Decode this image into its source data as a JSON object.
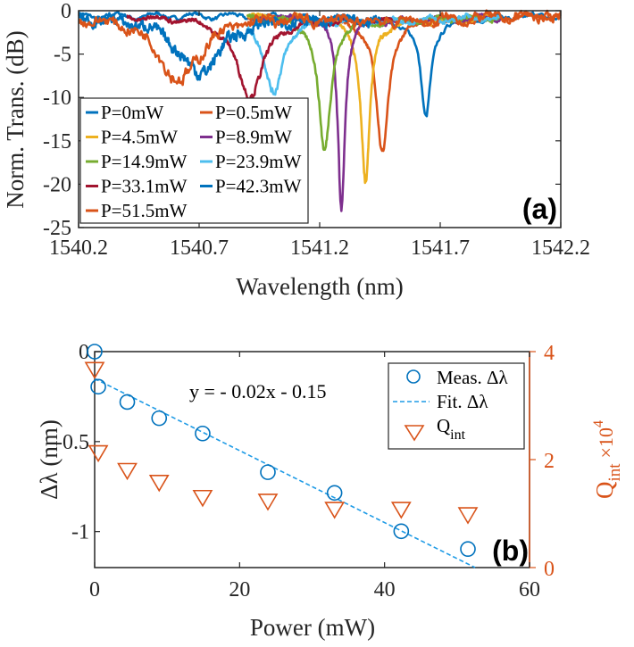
{
  "chart_data": [
    {
      "panel_label": "(a)",
      "type": "line",
      "xlabel": "Wavelength (nm)",
      "ylabel": "Norm. Trans. (dB)",
      "xlim": [
        1540.2,
        1542.2
      ],
      "ylim": [
        -25,
        0
      ],
      "xticks": [
        "1540.2",
        "1540.7",
        "1541.2",
        "1541.7",
        "1542.2"
      ],
      "yticks": [
        "0",
        "-5",
        "-10",
        "-15",
        "-20",
        "-25"
      ],
      "legend_position": "bottom-left",
      "grid": false,
      "series": [
        {
          "name": "P=0mW",
          "color": "#0072BD",
          "dip_center_nm": 1541.64,
          "dip_depth_db": -11.5,
          "fwhm_nm": 0.05,
          "range": [
            1540.2,
            1542.2
          ]
        },
        {
          "name": "P=0.5mW",
          "color": "#D95319",
          "dip_center_nm": 1541.46,
          "dip_depth_db": -15.5,
          "fwhm_nm": 0.06,
          "range": [
            1540.9,
            1542.2
          ]
        },
        {
          "name": "P=4.5mW",
          "color": "#EDB120",
          "dip_center_nm": 1541.39,
          "dip_depth_db": -19.0,
          "fwhm_nm": 0.045,
          "range": [
            1540.9,
            1541.9
          ]
        },
        {
          "name": "P=8.9mW",
          "color": "#7E2F8E",
          "dip_center_nm": 1541.29,
          "dip_depth_db": -22.0,
          "fwhm_nm": 0.035,
          "range": [
            1540.95,
            1541.95
          ]
        },
        {
          "name": "P=14.9mW",
          "color": "#77AC30",
          "dip_center_nm": 1541.22,
          "dip_depth_db": -15.5,
          "fwhm_nm": 0.06,
          "range": [
            1540.9,
            1541.95
          ]
        },
        {
          "name": "P=23.9mW",
          "color": "#4DBEEE",
          "dip_center_nm": 1541.01,
          "dip_depth_db": -9.0,
          "fwhm_nm": 0.09,
          "range": [
            1540.9,
            1541.95
          ]
        },
        {
          "name": "P=33.1mW",
          "color": "#A2142F",
          "dip_center_nm": 1540.91,
          "dip_depth_db": -9.0,
          "fwhm_nm": 0.14,
          "range": [
            1540.4,
            1541.5
          ]
        },
        {
          "name": "P=42.3mW",
          "color": "#0072BD",
          "dip_center_nm": 1540.7,
          "dip_depth_db": -6.5,
          "fwhm_nm": 0.22,
          "range": [
            1540.2,
            1541.45
          ]
        },
        {
          "name": "P=51.5mW",
          "color": "#D95319",
          "dip_center_nm": 1540.62,
          "dip_depth_db": -7.5,
          "fwhm_nm": 0.2,
          "range": [
            1540.2,
            1542.2
          ]
        }
      ]
    },
    {
      "panel_label": "(b)",
      "type": "scatter",
      "xlabel": "Power (mW)",
      "ylabel": "Δλ (nm)",
      "ylabel_right": {
        "base": "Q",
        "sub": "int",
        "mult": "×10",
        "sup": "4"
      },
      "xlim": [
        0,
        60
      ],
      "ylim": [
        -1.2,
        0
      ],
      "ylim_right": [
        0,
        4
      ],
      "xticks": [
        "0",
        "20",
        "40",
        "60"
      ],
      "yticks": [
        "0",
        "-0.5",
        "-1"
      ],
      "yticks_right": [
        "0",
        "2",
        "4"
      ],
      "annotation": "y = - 0.02x - 0.15",
      "fit": {
        "slope": -0.02,
        "intercept": -0.15
      },
      "legend_position": "top-right",
      "legend": {
        "meas": "Meas. Δλ",
        "fit": "Fit. Δλ",
        "q_base": "Q",
        "q_sub": "int"
      },
      "colors": {
        "meas": "#0072BD",
        "fit": "#1E9BE6",
        "q": "#D95319"
      },
      "x": [
        0,
        0.5,
        4.5,
        8.9,
        14.9,
        23.9,
        33.1,
        42.3,
        51.5
      ],
      "series": [
        {
          "name": "Meas. Δλ",
          "axis": "left",
          "values": [
            0,
            -0.195,
            -0.28,
            -0.37,
            -0.455,
            -0.67,
            -0.785,
            -0.998,
            -1.097
          ]
        },
        {
          "name": "Q_int",
          "axis": "right",
          "values": [
            3.68,
            2.14,
            1.81,
            1.59,
            1.31,
            1.24,
            1.09,
            1.09,
            0.99
          ]
        }
      ]
    }
  ]
}
